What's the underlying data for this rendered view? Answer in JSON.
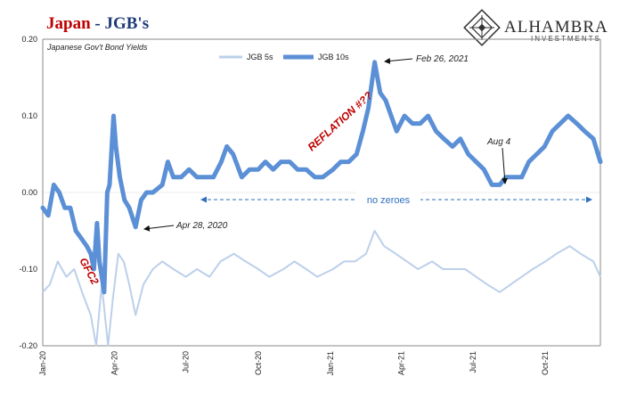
{
  "title": {
    "part1": "Japan",
    "sep": " - ",
    "part2": "JGB's"
  },
  "brand": {
    "name": "ALHAMBRA",
    "sub": "INVESTMENTS"
  },
  "colors": {
    "jgb5": "#bcd0ea",
    "jgb10": "#5b8fd6",
    "title_red": "#c00000",
    "title_navy": "#1f3a78",
    "annot_blue": "#2e6fbe"
  },
  "chart_data": {
    "type": "line",
    "title": "Japan - JGB's",
    "subtitle": "Japanese Gov't Bond Yields",
    "ylim": [
      -0.2,
      0.2
    ],
    "yticks": [
      "0.20",
      "0.10",
      "0.00",
      "-0.10",
      "-0.20"
    ],
    "xticks": [
      "Jan-20",
      "Apr-20",
      "Jul-20",
      "Oct-20",
      "Jan-21",
      "Apr-21",
      "Jul-21",
      "Oct-21"
    ],
    "xlim": [
      "2020-01-01",
      "2021-12-10"
    ],
    "series": [
      {
        "name": "JGB 5s",
        "points": [
          [
            "2020-01-01",
            -0.13
          ],
          [
            "2020-01-10",
            -0.12
          ],
          [
            "2020-01-20",
            -0.09
          ],
          [
            "2020-01-31",
            -0.11
          ],
          [
            "2020-02-10",
            -0.1
          ],
          [
            "2020-02-20",
            -0.13
          ],
          [
            "2020-03-02",
            -0.16
          ],
          [
            "2020-03-09",
            -0.2
          ],
          [
            "2020-03-16",
            -0.12
          ],
          [
            "2020-03-24",
            -0.2
          ],
          [
            "2020-03-30",
            -0.14
          ],
          [
            "2020-04-06",
            -0.08
          ],
          [
            "2020-04-13",
            -0.09
          ],
          [
            "2020-04-20",
            -0.12
          ],
          [
            "2020-04-28",
            -0.16
          ],
          [
            "2020-05-08",
            -0.12
          ],
          [
            "2020-05-20",
            -0.1
          ],
          [
            "2020-06-01",
            -0.09
          ],
          [
            "2020-06-15",
            -0.1
          ],
          [
            "2020-07-01",
            -0.11
          ],
          [
            "2020-07-15",
            -0.1
          ],
          [
            "2020-07-31",
            -0.11
          ],
          [
            "2020-08-14",
            -0.09
          ],
          [
            "2020-08-31",
            -0.08
          ],
          [
            "2020-09-15",
            -0.09
          ],
          [
            "2020-10-01",
            -0.1
          ],
          [
            "2020-10-15",
            -0.11
          ],
          [
            "2020-11-02",
            -0.1
          ],
          [
            "2020-11-16",
            -0.09
          ],
          [
            "2020-12-01",
            -0.1
          ],
          [
            "2020-12-15",
            -0.11
          ],
          [
            "2021-01-04",
            -0.1
          ],
          [
            "2021-01-18",
            -0.09
          ],
          [
            "2021-02-01",
            -0.09
          ],
          [
            "2021-02-15",
            -0.08
          ],
          [
            "2021-02-26",
            -0.05
          ],
          [
            "2021-03-10",
            -0.07
          ],
          [
            "2021-03-25",
            -0.08
          ],
          [
            "2021-04-08",
            -0.09
          ],
          [
            "2021-04-22",
            -0.1
          ],
          [
            "2021-05-10",
            -0.09
          ],
          [
            "2021-05-24",
            -0.1
          ],
          [
            "2021-06-07",
            -0.1
          ],
          [
            "2021-06-21",
            -0.1
          ],
          [
            "2021-07-05",
            -0.11
          ],
          [
            "2021-07-19",
            -0.12
          ],
          [
            "2021-08-04",
            -0.13
          ],
          [
            "2021-08-18",
            -0.12
          ],
          [
            "2021-09-01",
            -0.11
          ],
          [
            "2021-09-15",
            -0.1
          ],
          [
            "2021-10-01",
            -0.09
          ],
          [
            "2021-10-15",
            -0.08
          ],
          [
            "2021-11-01",
            -0.07
          ],
          [
            "2021-11-15",
            -0.08
          ],
          [
            "2021-12-01",
            -0.09
          ],
          [
            "2021-12-10",
            -0.11
          ]
        ]
      },
      {
        "name": "JGB 10s",
        "points": [
          [
            "2020-01-01",
            -0.02
          ],
          [
            "2020-01-08",
            -0.03
          ],
          [
            "2020-01-15",
            0.01
          ],
          [
            "2020-01-22",
            0.0
          ],
          [
            "2020-01-29",
            -0.02
          ],
          [
            "2020-02-05",
            -0.02
          ],
          [
            "2020-02-12",
            -0.05
          ],
          [
            "2020-02-19",
            -0.06
          ],
          [
            "2020-02-26",
            -0.07
          ],
          [
            "2020-03-02",
            -0.08
          ],
          [
            "2020-03-06",
            -0.1
          ],
          [
            "2020-03-10",
            -0.04
          ],
          [
            "2020-03-13",
            -0.09
          ],
          [
            "2020-03-19",
            -0.13
          ],
          [
            "2020-03-23",
            0.0
          ],
          [
            "2020-03-26",
            0.01
          ],
          [
            "2020-03-31",
            0.1
          ],
          [
            "2020-04-03",
            0.06
          ],
          [
            "2020-04-08",
            0.02
          ],
          [
            "2020-04-14",
            -0.01
          ],
          [
            "2020-04-20",
            -0.02
          ],
          [
            "2020-04-28",
            -0.045
          ],
          [
            "2020-05-05",
            -0.01
          ],
          [
            "2020-05-12",
            0.0
          ],
          [
            "2020-05-20",
            0.0
          ],
          [
            "2020-06-01",
            0.01
          ],
          [
            "2020-06-08",
            0.04
          ],
          [
            "2020-06-15",
            0.02
          ],
          [
            "2020-06-25",
            0.02
          ],
          [
            "2020-07-05",
            0.03
          ],
          [
            "2020-07-15",
            0.02
          ],
          [
            "2020-07-25",
            0.02
          ],
          [
            "2020-08-05",
            0.02
          ],
          [
            "2020-08-15",
            0.04
          ],
          [
            "2020-08-22",
            0.06
          ],
          [
            "2020-08-30",
            0.05
          ],
          [
            "2020-09-10",
            0.02
          ],
          [
            "2020-09-20",
            0.03
          ],
          [
            "2020-10-01",
            0.03
          ],
          [
            "2020-10-10",
            0.04
          ],
          [
            "2020-10-20",
            0.03
          ],
          [
            "2020-10-30",
            0.04
          ],
          [
            "2020-11-10",
            0.04
          ],
          [
            "2020-11-20",
            0.03
          ],
          [
            "2020-12-01",
            0.03
          ],
          [
            "2020-12-12",
            0.02
          ],
          [
            "2020-12-22",
            0.02
          ],
          [
            "2021-01-04",
            0.03
          ],
          [
            "2021-01-14",
            0.04
          ],
          [
            "2021-01-24",
            0.04
          ],
          [
            "2021-02-03",
            0.05
          ],
          [
            "2021-02-11",
            0.08
          ],
          [
            "2021-02-18",
            0.11
          ],
          [
            "2021-02-26",
            0.17
          ],
          [
            "2021-03-05",
            0.13
          ],
          [
            "2021-03-12",
            0.12
          ],
          [
            "2021-03-19",
            0.1
          ],
          [
            "2021-03-26",
            0.08
          ],
          [
            "2021-04-05",
            0.1
          ],
          [
            "2021-04-15",
            0.09
          ],
          [
            "2021-04-25",
            0.09
          ],
          [
            "2021-05-05",
            0.1
          ],
          [
            "2021-05-15",
            0.08
          ],
          [
            "2021-05-25",
            0.07
          ],
          [
            "2021-06-05",
            0.06
          ],
          [
            "2021-06-15",
            0.07
          ],
          [
            "2021-06-25",
            0.05
          ],
          [
            "2021-07-05",
            0.04
          ],
          [
            "2021-07-15",
            0.03
          ],
          [
            "2021-07-25",
            0.01
          ],
          [
            "2021-08-04",
            0.01
          ],
          [
            "2021-08-12",
            0.02
          ],
          [
            "2021-08-22",
            0.02
          ],
          [
            "2021-09-01",
            0.02
          ],
          [
            "2021-09-10",
            0.04
          ],
          [
            "2021-09-20",
            0.05
          ],
          [
            "2021-09-30",
            0.06
          ],
          [
            "2021-10-10",
            0.08
          ],
          [
            "2021-10-20",
            0.09
          ],
          [
            "2021-10-30",
            0.1
          ],
          [
            "2021-11-10",
            0.09
          ],
          [
            "2021-11-20",
            0.08
          ],
          [
            "2021-12-01",
            0.07
          ],
          [
            "2021-12-10",
            0.04
          ]
        ]
      }
    ],
    "annotations": [
      {
        "text": "Feb 26, 2021",
        "x": "2021-02-26",
        "y": 0.17
      },
      {
        "text": "Aug 4",
        "x": "2021-08-04",
        "y": 0.01
      },
      {
        "text": "Apr 28, 2020",
        "x": "2020-04-28",
        "y": -0.045
      },
      {
        "text": "REFLATION #??"
      },
      {
        "text": "GFC2"
      },
      {
        "text": "no zeroes"
      }
    ]
  }
}
